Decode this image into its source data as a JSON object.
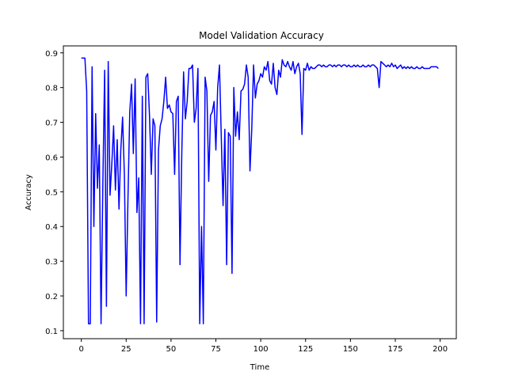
{
  "chart_data": {
    "type": "line",
    "title": "Model Validation Accuracy",
    "x_label": "Time",
    "y_label": "Accuracy",
    "x": [
      0,
      1,
      2,
      3,
      4,
      5,
      6,
      7,
      8,
      9,
      10,
      11,
      12,
      13,
      14,
      15,
      16,
      17,
      18,
      19,
      20,
      21,
      22,
      23,
      24,
      25,
      26,
      27,
      28,
      29,
      30,
      31,
      32,
      33,
      34,
      35,
      36,
      37,
      38,
      39,
      40,
      41,
      42,
      43,
      44,
      45,
      46,
      47,
      48,
      49,
      50,
      51,
      52,
      53,
      54,
      55,
      56,
      57,
      58,
      59,
      60,
      61,
      62,
      63,
      64,
      65,
      66,
      67,
      68,
      69,
      70,
      71,
      72,
      73,
      74,
      75,
      76,
      77,
      78,
      79,
      80,
      81,
      82,
      83,
      84,
      85,
      86,
      87,
      88,
      89,
      90,
      91,
      92,
      93,
      94,
      95,
      96,
      97,
      98,
      99,
      100,
      101,
      102,
      103,
      104,
      105,
      106,
      107,
      108,
      109,
      110,
      111,
      112,
      113,
      114,
      115,
      116,
      117,
      118,
      119,
      120,
      121,
      122,
      123,
      124,
      125,
      126,
      127,
      128,
      129,
      130,
      131,
      132,
      133,
      134,
      135,
      136,
      137,
      138,
      139,
      140,
      141,
      142,
      143,
      144,
      145,
      146,
      147,
      148,
      149,
      150,
      151,
      152,
      153,
      154,
      155,
      156,
      157,
      158,
      159,
      160,
      161,
      162,
      163,
      164,
      165,
      166,
      167,
      168,
      169,
      170,
      171,
      172,
      173,
      174,
      175,
      176,
      177,
      178,
      179,
      180,
      181,
      182,
      183,
      184,
      185,
      186,
      187,
      188,
      189,
      190,
      191,
      192,
      193,
      194,
      195,
      196,
      197,
      198,
      199
    ],
    "series": [
      {
        "color": "#0000ff",
        "values": [
          0.885,
          0.885,
          0.885,
          0.79,
          0.12,
          0.12,
          0.86,
          0.4,
          0.725,
          0.51,
          0.635,
          0.12,
          0.52,
          0.85,
          0.17,
          0.875,
          0.49,
          0.58,
          0.69,
          0.505,
          0.65,
          0.45,
          0.62,
          0.715,
          0.55,
          0.2,
          0.48,
          0.73,
          0.81,
          0.61,
          0.825,
          0.44,
          0.54,
          0.12,
          0.775,
          0.12,
          0.83,
          0.84,
          0.72,
          0.55,
          0.71,
          0.69,
          0.125,
          0.62,
          0.69,
          0.71,
          0.76,
          0.83,
          0.74,
          0.75,
          0.73,
          0.725,
          0.55,
          0.76,
          0.775,
          0.29,
          0.61,
          0.845,
          0.71,
          0.76,
          0.855,
          0.855,
          0.865,
          0.7,
          0.74,
          0.855,
          0.12,
          0.4,
          0.12,
          0.83,
          0.79,
          0.53,
          0.72,
          0.73,
          0.76,
          0.62,
          0.8,
          0.865,
          0.66,
          0.46,
          0.68,
          0.29,
          0.67,
          0.66,
          0.265,
          0.8,
          0.66,
          0.73,
          0.65,
          0.79,
          0.795,
          0.81,
          0.865,
          0.83,
          0.56,
          0.68,
          0.865,
          0.77,
          0.81,
          0.82,
          0.84,
          0.83,
          0.86,
          0.85,
          0.875,
          0.82,
          0.81,
          0.87,
          0.8,
          0.78,
          0.85,
          0.83,
          0.88,
          0.865,
          0.86,
          0.875,
          0.86,
          0.85,
          0.875,
          0.84,
          0.86,
          0.87,
          0.84,
          0.665,
          0.855,
          0.85,
          0.87,
          0.85,
          0.86,
          0.855,
          0.855,
          0.86,
          0.865,
          0.865,
          0.86,
          0.865,
          0.86,
          0.86,
          0.865,
          0.865,
          0.86,
          0.865,
          0.86,
          0.865,
          0.865,
          0.86,
          0.865,
          0.865,
          0.86,
          0.865,
          0.86,
          0.86,
          0.865,
          0.86,
          0.865,
          0.86,
          0.86,
          0.865,
          0.86,
          0.86,
          0.865,
          0.86,
          0.865,
          0.865,
          0.86,
          0.855,
          0.8,
          0.875,
          0.87,
          0.865,
          0.86,
          0.865,
          0.86,
          0.87,
          0.86,
          0.865,
          0.855,
          0.86,
          0.865,
          0.855,
          0.86,
          0.855,
          0.86,
          0.855,
          0.86,
          0.855,
          0.855,
          0.86,
          0.855,
          0.855,
          0.86,
          0.855,
          0.855,
          0.855,
          0.855,
          0.86,
          0.86,
          0.86,
          0.86,
          0.855
        ]
      }
    ],
    "xlim": [
      -10,
      209
    ],
    "ylim": [
      0.077,
      0.92
    ],
    "xticks": [
      0,
      25,
      50,
      75,
      100,
      125,
      150,
      175,
      200
    ],
    "yticks": [
      0.1,
      0.2,
      0.3,
      0.4,
      0.5,
      0.6,
      0.7,
      0.8,
      0.9
    ]
  }
}
